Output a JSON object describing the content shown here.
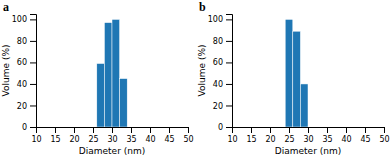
{
  "chart_data": [
    {
      "type": "histogram",
      "title": "a",
      "x_label": "Diameter (nm)",
      "y_label": "Volume (%)",
      "bins": [
        26,
        28,
        30,
        32,
        34
      ],
      "values": [
        59,
        97,
        100,
        45
      ],
      "xlim": [
        10,
        50
      ],
      "xticks": [
        10,
        15,
        20,
        25,
        30,
        35,
        40,
        45,
        50
      ],
      "ylim": [
        0,
        105
      ],
      "yticks": [
        0,
        20,
        40,
        60,
        80,
        100
      ],
      "grid": false
    },
    {
      "type": "histogram",
      "title": "b",
      "x_label": "Diameter (nm)",
      "y_label": "Volume (%)",
      "bins": [
        24,
        26,
        28,
        30
      ],
      "values": [
        100,
        89,
        40
      ],
      "xlim": [
        10,
        50
      ],
      "xticks": [
        10,
        15,
        20,
        25,
        30,
        35,
        40,
        45,
        50
      ],
      "ylim": [
        0,
        105
      ],
      "yticks": [
        0,
        20,
        40,
        60,
        80,
        100
      ],
      "grid": false
    }
  ]
}
